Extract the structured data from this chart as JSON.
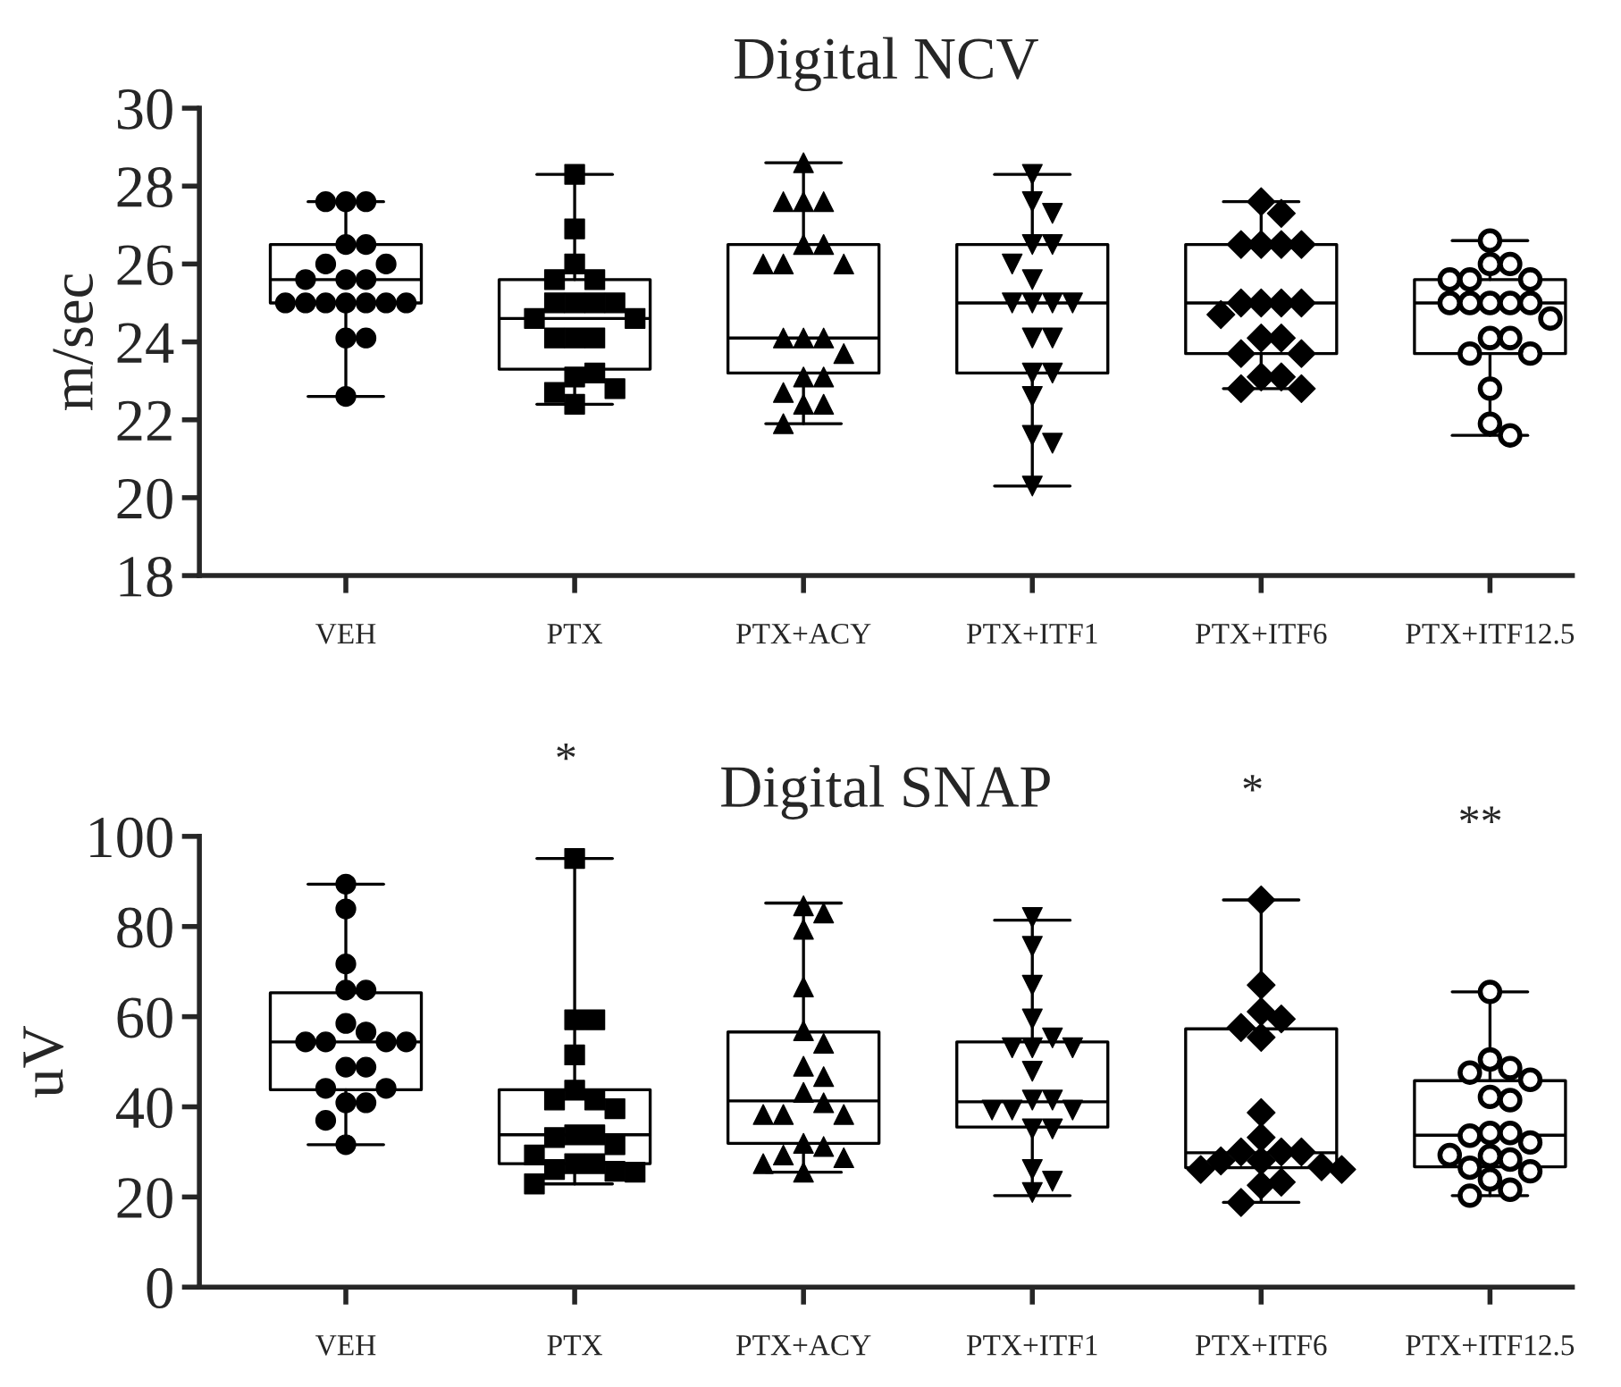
{
  "chart_data": [
    {
      "type": "box",
      "title": "Digital NCV",
      "ylabel": "m/sec",
      "categories": [
        "VEH",
        "PTX",
        "PTX+ACY",
        "PTX+ITF1",
        "PTX+ITF6",
        "PTX+ITF12.5"
      ],
      "ylim": [
        18,
        30
      ],
      "yticks": [
        18,
        20,
        22,
        24,
        26,
        28,
        30
      ],
      "grid": false,
      "legend": false,
      "boxes": [
        {
          "low": 22.6,
          "q1": 25.0,
          "median": 25.6,
          "q3": 26.5,
          "high": 27.6
        },
        {
          "low": 22.4,
          "q1": 23.3,
          "median": 24.6,
          "q3": 25.6,
          "high": 28.3
        },
        {
          "low": 21.9,
          "q1": 23.2,
          "median": 24.1,
          "q3": 26.5,
          "high": 28.6
        },
        {
          "low": 20.3,
          "q1": 23.2,
          "median": 25.0,
          "q3": 26.5,
          "high": 28.3
        },
        {
          "low": 22.8,
          "q1": 23.7,
          "median": 25.0,
          "q3": 26.5,
          "high": 27.6
        },
        {
          "low": 21.6,
          "q1": 23.7,
          "median": 25.0,
          "q3": 25.6,
          "high": 26.6
        }
      ],
      "series": [
        {
          "type": "scatter",
          "marker": "circle",
          "color": "#000000",
          "x": [
            "VEH",
            "VEH",
            "VEH",
            "VEH",
            "VEH",
            "VEH",
            "VEH",
            "VEH",
            "VEH",
            "VEH",
            "VEH",
            "VEH",
            "VEH",
            "VEH",
            "VEH",
            "VEH",
            "VEH",
            "VEH",
            "VEH",
            "VEH"
          ],
          "values": [
            27.6,
            27.6,
            27.6,
            26.5,
            26.5,
            26.0,
            26.0,
            25.6,
            25.6,
            25.6,
            25.0,
            25.0,
            25.0,
            25.0,
            25.0,
            25.0,
            25.0,
            24.1,
            24.1,
            22.6
          ]
        },
        {
          "type": "scatter",
          "marker": "square",
          "color": "#000000",
          "x": [
            "PTX",
            "PTX",
            "PTX",
            "PTX",
            "PTX",
            "PTX",
            "PTX",
            "PTX",
            "PTX",
            "PTX",
            "PTX",
            "PTX",
            "PTX",
            "PTX",
            "PTX",
            "PTX",
            "PTX",
            "PTX",
            "PTX"
          ],
          "values": [
            28.3,
            26.9,
            26.0,
            25.6,
            25.6,
            25.0,
            25.0,
            25.0,
            25.0,
            24.6,
            24.6,
            24.1,
            24.1,
            24.1,
            23.1,
            23.2,
            22.7,
            22.8,
            22.4
          ]
        },
        {
          "type": "scatter",
          "marker": "triangle",
          "color": "#000000",
          "x": [
            "PTX+ACY",
            "PTX+ACY",
            "PTX+ACY",
            "PTX+ACY",
            "PTX+ACY",
            "PTX+ACY",
            "PTX+ACY",
            "PTX+ACY",
            "PTX+ACY",
            "PTX+ACY",
            "PTX+ACY",
            "PTX+ACY",
            "PTX+ACY",
            "PTX+ACY",
            "PTX+ACY",
            "PTX+ACY",
            "PTX+ACY",
            "PTX+ACY",
            "PTX+ACY"
          ],
          "values": [
            28.6,
            27.6,
            27.6,
            27.6,
            26.5,
            26.5,
            26.0,
            26.0,
            26.0,
            24.1,
            24.1,
            24.1,
            23.7,
            23.1,
            23.1,
            22.7,
            22.4,
            22.4,
            21.9
          ]
        },
        {
          "type": "scatter",
          "marker": "triangle_down",
          "color": "#000000",
          "x": [
            "PTX+ITF1",
            "PTX+ITF1",
            "PTX+ITF1",
            "PTX+ITF1",
            "PTX+ITF1",
            "PTX+ITF1",
            "PTX+ITF1",
            "PTX+ITF1",
            "PTX+ITF1",
            "PTX+ITF1",
            "PTX+ITF1",
            "PTX+ITF1",
            "PTX+ITF1",
            "PTX+ITF1",
            "PTX+ITF1",
            "PTX+ITF1",
            "PTX+ITF1",
            "PTX+ITF1",
            "PTX+ITF1"
          ],
          "values": [
            28.3,
            27.6,
            27.3,
            26.5,
            26.5,
            26.0,
            25.6,
            25.0,
            25.0,
            25.0,
            25.0,
            24.1,
            24.1,
            23.2,
            23.2,
            22.6,
            21.6,
            21.4,
            20.3
          ]
        },
        {
          "type": "scatter",
          "marker": "diamond",
          "color": "#000000",
          "x": [
            "PTX+ITF6",
            "PTX+ITF6",
            "PTX+ITF6",
            "PTX+ITF6",
            "PTX+ITF6",
            "PTX+ITF6",
            "PTX+ITF6",
            "PTX+ITF6",
            "PTX+ITF6",
            "PTX+ITF6",
            "PTX+ITF6",
            "PTX+ITF6",
            "PTX+ITF6",
            "PTX+ITF6",
            "PTX+ITF6",
            "PTX+ITF6",
            "PTX+ITF6",
            "PTX+ITF6",
            "PTX+ITF6"
          ],
          "values": [
            27.6,
            27.3,
            26.5,
            26.5,
            26.5,
            26.5,
            25.0,
            25.0,
            25.0,
            25.0,
            24.7,
            24.1,
            24.1,
            23.7,
            23.7,
            23.1,
            23.1,
            22.8,
            22.8
          ]
        },
        {
          "type": "scatter",
          "marker": "open_circle",
          "color": "#000000",
          "x": [
            "PTX+ITF12.5",
            "PTX+ITF12.5",
            "PTX+ITF12.5",
            "PTX+ITF12.5",
            "PTX+ITF12.5",
            "PTX+ITF12.5",
            "PTX+ITF12.5",
            "PTX+ITF12.5",
            "PTX+ITF12.5",
            "PTX+ITF12.5",
            "PTX+ITF12.5",
            "PTX+ITF12.5",
            "PTX+ITF12.5",
            "PTX+ITF12.5",
            "PTX+ITF12.5",
            "PTX+ITF12.5",
            "PTX+ITF12.5",
            "PTX+ITF12.5",
            "PTX+ITF12.5"
          ],
          "values": [
            26.6,
            26.0,
            26.0,
            25.6,
            25.6,
            25.6,
            25.0,
            25.0,
            25.0,
            25.0,
            25.0,
            24.6,
            24.1,
            24.1,
            23.7,
            23.7,
            22.8,
            21.9,
            21.6
          ]
        }
      ]
    },
    {
      "type": "box",
      "title": "Digital SNAP",
      "ylabel": "uV",
      "categories": [
        "VEH",
        "PTX",
        "PTX+ACY",
        "PTX+ITF1",
        "PTX+ITF6",
        "PTX+ITF12.5"
      ],
      "ylim": [
        0,
        100
      ],
      "yticks": [
        0,
        20,
        40,
        60,
        80,
        100
      ],
      "grid": false,
      "legend": false,
      "annotations": [
        "*",
        "*",
        "**"
      ],
      "boxes": [
        {
          "low": 31.6,
          "q1": 43.8,
          "median": 54.4,
          "q3": 65.3,
          "high": 89.4
        },
        {
          "low": 22.9,
          "q1": 27.4,
          "median": 33.8,
          "q3": 43.8,
          "high": 95.1
        },
        {
          "low": 25.5,
          "q1": 31.9,
          "median": 41.3,
          "q3": 56.6,
          "high": 85.2
        },
        {
          "low": 20.3,
          "q1": 35.5,
          "median": 41.1,
          "q3": 54.4,
          "high": 81.4
        },
        {
          "low": 18.8,
          "q1": 26.5,
          "median": 29.8,
          "q3": 57.3,
          "high": 85.9
        },
        {
          "low": 20.3,
          "q1": 26.7,
          "median": 33.7,
          "q3": 45.8,
          "high": 65.5
        }
      ],
      "series": [
        {
          "type": "scatter",
          "marker": "circle",
          "color": "#000000",
          "x": [
            "VEH",
            "VEH",
            "VEH",
            "VEH",
            "VEH",
            "VEH",
            "VEH",
            "VEH",
            "VEH",
            "VEH",
            "VEH",
            "VEH",
            "VEH",
            "VEH",
            "VEH",
            "VEH",
            "VEH",
            "VEH",
            "VEH"
          ],
          "values": [
            89.4,
            83.9,
            71.7,
            65.9,
            65.9,
            58.5,
            56.6,
            54.4,
            54.4,
            54.4,
            54.4,
            48.8,
            48.8,
            44.1,
            44.1,
            40.9,
            40.9,
            37.0,
            31.6
          ]
        },
        {
          "type": "scatter",
          "marker": "square",
          "color": "#000000",
          "x": [
            "PTX",
            "PTX",
            "PTX",
            "PTX",
            "PTX",
            "PTX",
            "PTX",
            "PTX",
            "PTX",
            "PTX",
            "PTX",
            "PTX",
            "PTX",
            "PTX",
            "PTX",
            "PTX",
            "PTX",
            "PTX",
            "PTX"
          ],
          "values": [
            95.1,
            59.3,
            59.3,
            51.5,
            43.7,
            41.5,
            41.5,
            39.6,
            33.8,
            33.8,
            33.2,
            31.6,
            29.3,
            27.4,
            27.4,
            26.1,
            25.7,
            25.5,
            22.9
          ]
        },
        {
          "type": "scatter",
          "marker": "triangle",
          "color": "#000000",
          "x": [
            "PTX+ACY",
            "PTX+ACY",
            "PTX+ACY",
            "PTX+ACY",
            "PTX+ACY",
            "PTX+ACY",
            "PTX+ACY",
            "PTX+ACY",
            "PTX+ACY",
            "PTX+ACY",
            "PTX+ACY",
            "PTX+ACY",
            "PTX+ACY",
            "PTX+ACY",
            "PTX+ACY",
            "PTX+ACY",
            "PTX+ACY",
            "PTX+ACY",
            "PTX+ACY"
          ],
          "values": [
            84.6,
            83.0,
            79.4,
            66.6,
            56.9,
            54.1,
            49.0,
            46.7,
            43.2,
            40.9,
            38.3,
            38.3,
            38.3,
            31.9,
            31.2,
            29.3,
            28.7,
            27.4,
            25.5
          ]
        },
        {
          "type": "scatter",
          "marker": "triangle_down",
          "color": "#000000",
          "x": [
            "PTX+ITF1",
            "PTX+ITF1",
            "PTX+ITF1",
            "PTX+ITF1",
            "PTX+ITF1",
            "PTX+ITF1",
            "PTX+ITF1",
            "PTX+ITF1",
            "PTX+ITF1",
            "PTX+ITF1",
            "PTX+ITF1",
            "PTX+ITF1",
            "PTX+ITF1",
            "PTX+ITF1",
            "PTX+ITF1",
            "PTX+ITF1",
            "PTX+ITF1",
            "PTX+ITF1",
            "PTX+ITF1"
          ],
          "values": [
            82.0,
            75.6,
            67.0,
            59.5,
            55.3,
            53.1,
            53.1,
            53.1,
            47.9,
            41.5,
            41.5,
            39.3,
            39.3,
            39.3,
            35.1,
            35.1,
            26.1,
            23.5,
            21.0
          ]
        },
        {
          "type": "scatter",
          "marker": "diamond",
          "color": "#000000",
          "x": [
            "PTX+ITF6",
            "PTX+ITF6",
            "PTX+ITF6",
            "PTX+ITF6",
            "PTX+ITF6",
            "PTX+ITF6",
            "PTX+ITF6",
            "PTX+ITF6",
            "PTX+ITF6",
            "PTX+ITF6",
            "PTX+ITF6",
            "PTX+ITF6",
            "PTX+ITF6",
            "PTX+ITF6",
            "PTX+ITF6",
            "PTX+ITF6",
            "PTX+ITF6",
            "PTX+ITF6",
            "PTX+ITF6"
          ],
          "values": [
            85.9,
            67.0,
            61.1,
            59.5,
            57.6,
            55.4,
            38.7,
            33.2,
            30.0,
            30.0,
            30.0,
            28.0,
            28.0,
            26.7,
            26.1,
            26.1,
            23.3,
            22.6,
            18.8
          ]
        },
        {
          "type": "scatter",
          "marker": "open_circle",
          "color": "#000000",
          "x": [
            "PTX+ITF12.5",
            "PTX+ITF12.5",
            "PTX+ITF12.5",
            "PTX+ITF12.5",
            "PTX+ITF12.5",
            "PTX+ITF12.5",
            "PTX+ITF12.5",
            "PTX+ITF12.5",
            "PTX+ITF12.5",
            "PTX+ITF12.5",
            "PTX+ITF12.5",
            "PTX+ITF12.5",
            "PTX+ITF12.5",
            "PTX+ITF12.5",
            "PTX+ITF12.5",
            "PTX+ITF12.5",
            "PTX+ITF12.5",
            "PTX+ITF12.5",
            "PTX+ITF12.5"
          ],
          "values": [
            65.5,
            50.5,
            48.6,
            47.6,
            46.0,
            42.2,
            41.5,
            34.2,
            34.2,
            33.6,
            32.1,
            29.1,
            29.3,
            28.3,
            26.5,
            25.7,
            23.9,
            21.6,
            20.3
          ]
        }
      ]
    }
  ]
}
